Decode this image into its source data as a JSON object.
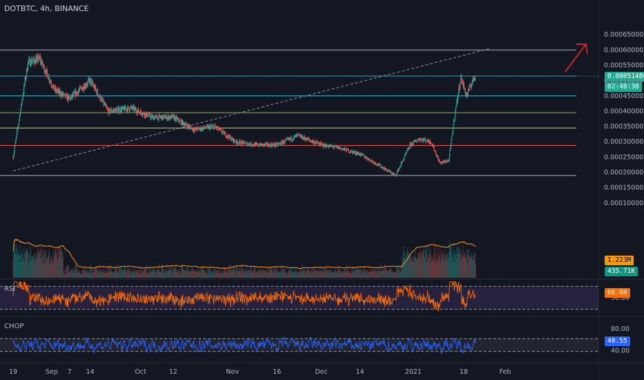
{
  "header": {
    "title": "DOTBTC, 4h, BINANCE"
  },
  "price_tags": {
    "last_price": "0.00051480",
    "countdown": "02:48:38",
    "volume_ma": "1.223M",
    "volume": "435.71K",
    "rsi": "66.60",
    "chop": "48.55"
  },
  "panes": {
    "rsi_label": "RSI",
    "chop_label": "CHOP"
  },
  "colors": {
    "background": "#131722",
    "bull": "#26a69a",
    "bear": "#ef5350",
    "tag_teal": "#22ab94",
    "tag_orange": "#ff9800",
    "tag_green": "#089981",
    "tag_blue": "#2962ff",
    "rsi_line": "#ff6d00",
    "chop_line": "#2962ff",
    "arrow": "#c62828"
  },
  "chart_data": [
    {
      "type": "candlestick",
      "symbol": "DOTBTC",
      "interval": "4h",
      "exchange": "BINANCE",
      "y_scale": "linear",
      "y_ticks": [
        "0.00065000",
        "0.00060000",
        "0.00055000",
        "0.00050000",
        "0.00045000",
        "0.00040000",
        "0.00035000",
        "0.00030000",
        "0.00025000",
        "0.00020000",
        "0.00015000",
        "0.00010000"
      ],
      "x_ticks": [
        "19",
        "Sep",
        "7",
        "14",
        "Oct",
        "12",
        "Nov",
        "16",
        "Dec",
        "14",
        "2021",
        "18",
        "Feb"
      ],
      "approx_close_path": [
        {
          "date": "2020-08-19",
          "close": 0.00025
        },
        {
          "date": "2020-08-24",
          "close": 0.00056
        },
        {
          "date": "2020-08-28",
          "close": 0.00057
        },
        {
          "date": "2020-09-02",
          "close": 0.00047
        },
        {
          "date": "2020-09-07",
          "close": 0.00044
        },
        {
          "date": "2020-09-14",
          "close": 0.0005
        },
        {
          "date": "2020-09-20",
          "close": 0.0004
        },
        {
          "date": "2020-09-28",
          "close": 0.00041
        },
        {
          "date": "2020-10-05",
          "close": 0.00038
        },
        {
          "date": "2020-10-12",
          "close": 0.00038
        },
        {
          "date": "2020-10-19",
          "close": 0.00034
        },
        {
          "date": "2020-10-26",
          "close": 0.00035
        },
        {
          "date": "2020-11-02",
          "close": 0.0003
        },
        {
          "date": "2020-11-09",
          "close": 0.00029
        },
        {
          "date": "2020-11-16",
          "close": 0.00029
        },
        {
          "date": "2020-11-23",
          "close": 0.00032
        },
        {
          "date": "2020-12-01",
          "close": 0.00029
        },
        {
          "date": "2020-12-07",
          "close": 0.00028
        },
        {
          "date": "2020-12-14",
          "close": 0.00026
        },
        {
          "date": "2020-12-21",
          "close": 0.00022
        },
        {
          "date": "2020-12-26",
          "close": 0.00019
        },
        {
          "date": "2020-12-31",
          "close": 0.00029
        },
        {
          "date": "2021-01-03",
          "close": 0.00031
        },
        {
          "date": "2021-01-07",
          "close": 0.0003
        },
        {
          "date": "2021-01-10",
          "close": 0.00023
        },
        {
          "date": "2021-01-13",
          "close": 0.00024
        },
        {
          "date": "2021-01-15",
          "close": 0.00039
        },
        {
          "date": "2021-01-17",
          "close": 0.00051
        },
        {
          "date": "2021-01-19",
          "close": 0.00045
        },
        {
          "date": "2021-01-21",
          "close": 0.0005
        },
        {
          "date": "2021-01-22",
          "close": 0.0005148
        }
      ],
      "horizontal_levels": [
        {
          "price": 0.0006,
          "color": "#b2b5be"
        },
        {
          "price": 0.000515,
          "color": "#2196f3"
        },
        {
          "price": 0.00045,
          "color": "#26c6da"
        },
        {
          "price": 0.000395,
          "color": "#8bc34a"
        },
        {
          "price": 0.000345,
          "color": "#cddc39"
        },
        {
          "price": 0.000288,
          "color": "#ef5350"
        },
        {
          "price": 0.00019,
          "color": "#b2b5be"
        }
      ],
      "trendline": {
        "start": {
          "date": "2020-08-19",
          "price": 0.000205
        },
        "end": {
          "date": "2021-01-27",
          "price": 0.000605
        },
        "style": "dashed"
      },
      "last_price": 0.0005148
    },
    {
      "type": "line",
      "name": "Volume MA",
      "last_value": "1.223M"
    },
    {
      "type": "line",
      "name": "RSI",
      "y_ticks": [
        "50.00"
      ],
      "bands": [
        30,
        70
      ],
      "last_value": 66.6
    },
    {
      "type": "line",
      "name": "CHOP",
      "y_ticks": [
        "80.00",
        "40.00"
      ],
      "bands": [
        38.2,
        61.8
      ],
      "last_value": 48.55
    }
  ]
}
